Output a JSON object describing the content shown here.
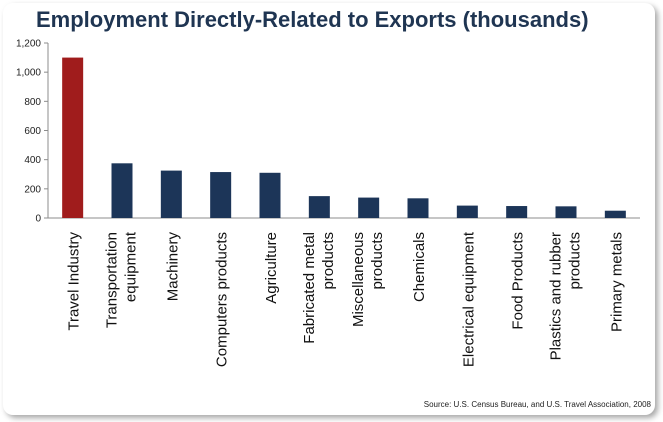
{
  "chart_data": {
    "type": "bar",
    "title": "Employment Directly-Related to Exports (thousands)",
    "categories": [
      "Travel Industry",
      "Transportation equipment",
      "Machinery",
      "Computers products",
      "Agriculture",
      "Fabricated metal products",
      "Miscellaneous products",
      "Chemicals",
      "Electrical equipment",
      "Food Products",
      "Plastics and rubber products",
      "Primary metals"
    ],
    "category_label_lines": [
      [
        "Travel Industry"
      ],
      [
        "Transportation",
        "equipment"
      ],
      [
        "Machinery"
      ],
      [
        "Computers products"
      ],
      [
        "Agriculture"
      ],
      [
        "Fabricated metal",
        "products"
      ],
      [
        "Miscellaneous",
        "products"
      ],
      [
        "Chemicals"
      ],
      [
        "Electrical equipment"
      ],
      [
        "Food Products"
      ],
      [
        "Plastics and rubber",
        "products"
      ],
      [
        "Primary metals"
      ]
    ],
    "values": [
      1100,
      375,
      325,
      315,
      310,
      150,
      140,
      135,
      85,
      82,
      80,
      50
    ],
    "ylim": [
      0,
      1200
    ],
    "yticks": [
      0,
      200,
      400,
      600,
      800,
      1000,
      1200
    ],
    "ytick_labels": [
      "0",
      "200",
      "400",
      "600",
      "800",
      "1,000",
      "1,200"
    ],
    "xlabel": "",
    "ylabel": "",
    "grid": false,
    "legend": "none",
    "colors": {
      "highlight": "#a01c1c",
      "default": "#1c3558",
      "axis": "#8c8c8c",
      "title": "#1f3552"
    },
    "source": "Source: U.S. Census Bureau, and U.S. Travel Association,  2008"
  }
}
